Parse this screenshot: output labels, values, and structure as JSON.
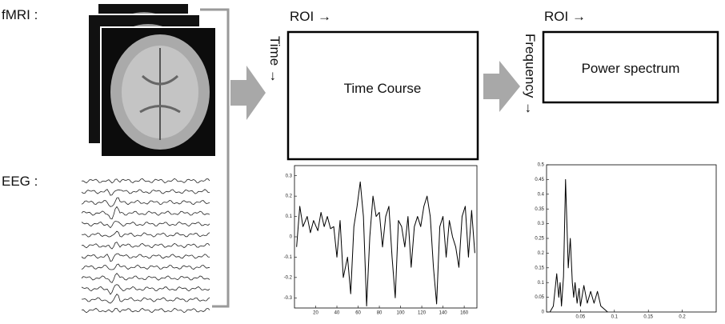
{
  "labels": {
    "fmri": "fMRI :",
    "eeg": "EEG :",
    "roi_1": "ROI →",
    "time": "Time →",
    "time_course": "Time Course",
    "roi_2": "ROI →",
    "frequency": "Frequency →",
    "power_spectrum": "Power spectrum"
  },
  "chart_data": [
    {
      "type": "line",
      "color": "#000000",
      "x": [
        2,
        5,
        8,
        12,
        15,
        18,
        22,
        25,
        28,
        31,
        34,
        37,
        40,
        43,
        46,
        50,
        53,
        56,
        59,
        62,
        65,
        68,
        71,
        74,
        77,
        80,
        83,
        86,
        89,
        92,
        95,
        98,
        101,
        104,
        107,
        110,
        113,
        116,
        119,
        122,
        125,
        128,
        131,
        134,
        137,
        140,
        143,
        146,
        149,
        152,
        155,
        158,
        161,
        164,
        167,
        170
      ],
      "values": [
        -0.05,
        0.15,
        0.05,
        0.1,
        0.02,
        0.08,
        0.03,
        0.12,
        0.05,
        0.1,
        0.04,
        0.05,
        -0.1,
        0.08,
        -0.2,
        -0.1,
        -0.28,
        0.05,
        0.15,
        0.27,
        0.1,
        -0.34,
        0.0,
        0.2,
        0.1,
        0.12,
        -0.05,
        0.1,
        0.15,
        -0.1,
        -0.3,
        0.08,
        0.05,
        -0.05,
        0.1,
        -0.15,
        0.05,
        0.1,
        0.05,
        0.15,
        0.2,
        0.1,
        -0.15,
        -0.33,
        0.05,
        0.1,
        -0.1,
        0.08,
        0.0,
        -0.05,
        -0.15,
        0.1,
        0.15,
        -0.1,
        0.13,
        -0.08
      ],
      "xlim": [
        0,
        172
      ],
      "xticks": [
        20,
        40,
        60,
        80,
        100,
        120,
        140,
        160
      ],
      "ylim": [
        -0.35,
        0.35
      ],
      "yticks": [
        -0.3,
        -0.2,
        -0.1,
        0,
        0.1,
        0.2,
        0.3
      ]
    },
    {
      "type": "line",
      "color": "#000000",
      "x": [
        0.005,
        0.01,
        0.015,
        0.018,
        0.02,
        0.022,
        0.025,
        0.028,
        0.03,
        0.032,
        0.035,
        0.038,
        0.04,
        0.042,
        0.045,
        0.048,
        0.05,
        0.055,
        0.06,
        0.065,
        0.07,
        0.075,
        0.08,
        0.09
      ],
      "values": [
        0,
        0.02,
        0.13,
        0.05,
        0.1,
        0.02,
        0.12,
        0.45,
        0.3,
        0.15,
        0.25,
        0.1,
        0.05,
        0.1,
        0.03,
        0.08,
        0.02,
        0.09,
        0.03,
        0.07,
        0.03,
        0.07,
        0.02,
        0
      ],
      "xlim": [
        0,
        0.25
      ],
      "xticks": [
        0.05,
        0.1,
        0.15,
        0.2
      ],
      "ylim": [
        0,
        0.5
      ],
      "yticks": [
        0,
        0.05,
        0.1,
        0.15,
        0.2,
        0.25,
        0.3,
        0.35,
        0.4,
        0.45,
        0.5
      ]
    }
  ]
}
